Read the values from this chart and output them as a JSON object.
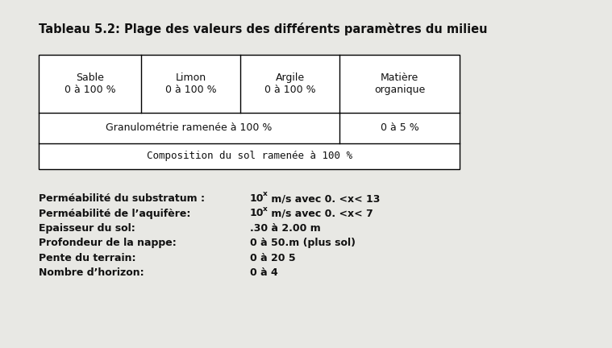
{
  "title": "Tableau 5.2: Plage des valeurs des différents paramètres du milieu",
  "bg_color": "#e8e8e4",
  "table": {
    "col1_header": "Sable\n0 à 100 %",
    "col2_header": "Limon\n0 à 100 %",
    "col3_header": "Argile\n0 à 100 %",
    "col4_header": "Matière\norganique",
    "row2_left": "Granulométrie ramenée à 100 %",
    "row2_right": "0 à 5 %",
    "row3": "Composition du sol ramenée à 100 %"
  },
  "params": [
    [
      "Perméabilité du substratum :",
      " m/s avec 0. <x< 13"
    ],
    [
      "Perméabilité de l’aquifère:",
      " m/s avec 0. <x< 7"
    ],
    [
      "Epaisseur du sol:",
      ".30 à 2.00 m"
    ],
    [
      "Profondeur de la nappe:",
      "0 à 50.m (plus sol)"
    ],
    [
      "Pente du terrain:",
      "0 à 20 5"
    ],
    [
      "Nombre d’horizon:",
      "0 à 4"
    ]
  ],
  "font_color": "#111111"
}
